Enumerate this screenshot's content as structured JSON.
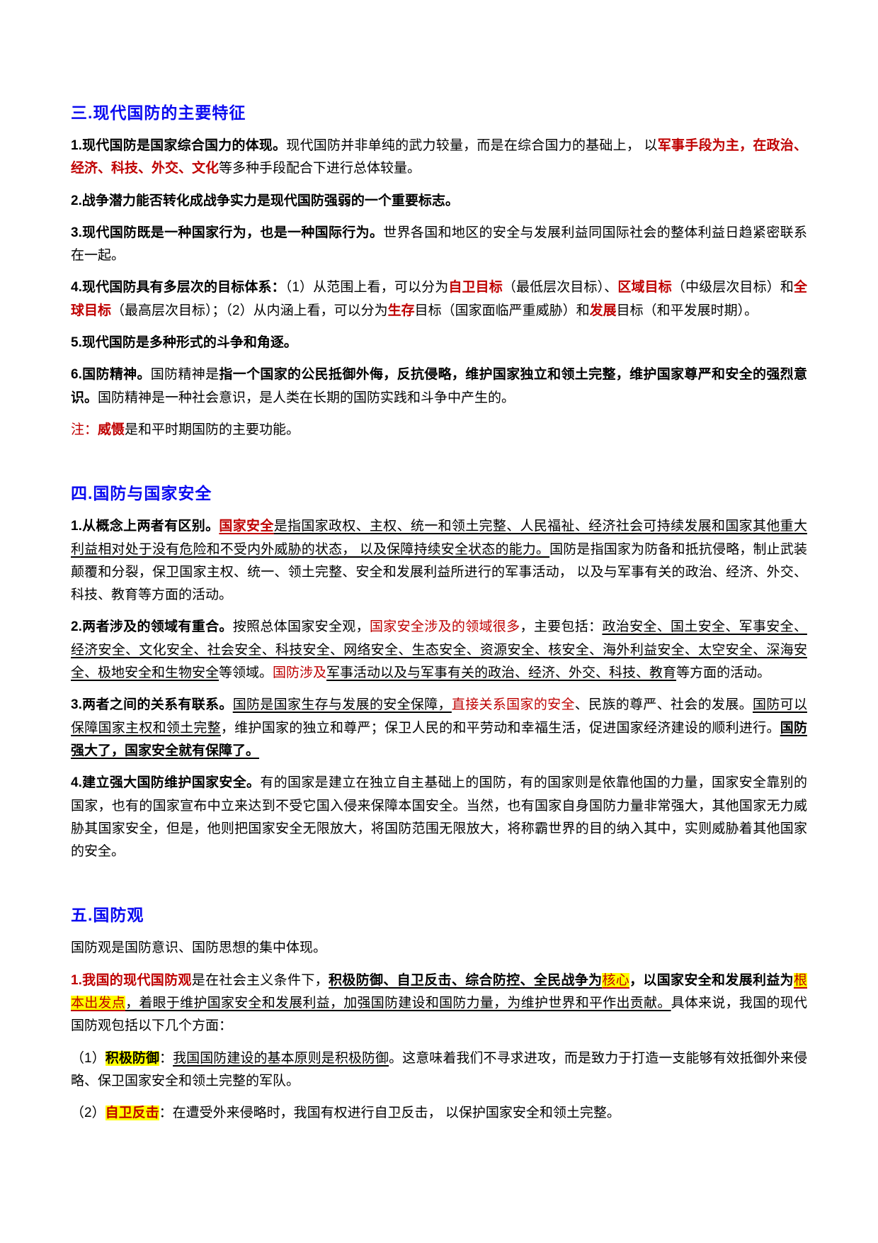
{
  "colors": {
    "heading_blue": "#0a0af0",
    "accent_red": "#bf0000",
    "highlight_yellow": "#ffff00",
    "body_black": "#000000",
    "page_background": "#ffffff"
  },
  "style_flags_legend": {
    "b": "bold",
    "r": "red-text",
    "u": "underline",
    "h": "yellow-highlight"
  },
  "document": {
    "sections": [
      {
        "id": "3",
        "heading": "三.现代国防的主要特征",
        "paragraphs": [
          {
            "runs": [
              {
                "t": "1.现代国防是国家综合国力的体现。",
                "s": [
                  "b"
                ]
              },
              {
                "t": "现代国防并非单纯的武力较量，而是在综合国力的基础上， 以",
                "s": []
              },
              {
                "t": "军事手段为主，在政治、经济、科技、外交、文化",
                "s": [
                  "b",
                  "r"
                ]
              },
              {
                "t": "等多种手段配合下进行总体较量。",
                "s": []
              }
            ]
          },
          {
            "runs": [
              {
                "t": "2.战争潜力能否转化成战争实力是现代国防强弱的一个重要标志。",
                "s": [
                  "b"
                ]
              }
            ]
          },
          {
            "runs": [
              {
                "t": "3.现代国防既是一种国家行为，也是一种国际行为。",
                "s": [
                  "b"
                ]
              },
              {
                "t": "世界各国和地区的安全与发展利益同国际社会的整体利益日趋紧密联系在一起。",
                "s": []
              }
            ]
          },
          {
            "runs": [
              {
                "t": "4.现代国防具有多层次的目标体系：",
                "s": [
                  "b"
                ]
              },
              {
                "t": "（1）从范围上看，可以分为",
                "s": []
              },
              {
                "t": "自卫目标",
                "s": [
                  "b",
                  "r"
                ]
              },
              {
                "t": "（最低层次目标）、",
                "s": []
              },
              {
                "t": "区域目标",
                "s": [
                  "b",
                  "r"
                ]
              },
              {
                "t": "（中级层次目标）和",
                "s": []
              },
              {
                "t": "全球目标",
                "s": [
                  "b",
                  "r"
                ]
              },
              {
                "t": "（最高层次目标）；（2）从内涵上看，可以分为",
                "s": []
              },
              {
                "t": "生存",
                "s": [
                  "b",
                  "r"
                ]
              },
              {
                "t": "目标（国家面临严重威胁）和",
                "s": []
              },
              {
                "t": "发展",
                "s": [
                  "b",
                  "r"
                ]
              },
              {
                "t": "目标（和平发展时期）。",
                "s": []
              }
            ]
          },
          {
            "runs": [
              {
                "t": "5.现代国防是多种形式的斗争和角逐。",
                "s": [
                  "b"
                ]
              }
            ]
          },
          {
            "runs": [
              {
                "t": "6.国防精神。",
                "s": [
                  "b"
                ]
              },
              {
                "t": "国防精神是",
                "s": []
              },
              {
                "t": "指一个国家的公民抵御外侮，反抗侵略，维护国家独立和领土完整，维护国家尊严和安全的强烈意识。",
                "s": [
                  "b"
                ]
              },
              {
                "t": "国防精神是一种社会意识，是人类在长期的国防实践和斗争中产生的。",
                "s": []
              }
            ]
          },
          {
            "runs": [
              {
                "t": "注：",
                "s": [
                  "r"
                ]
              },
              {
                "t": "威慑",
                "s": [
                  "b",
                  "r"
                ]
              },
              {
                "t": "是和平时期国防的主要功能。",
                "s": []
              }
            ]
          }
        ]
      },
      {
        "id": "4",
        "heading": "四.国防与国家安全",
        "paragraphs": [
          {
            "runs": [
              {
                "t": "1.从概念上两者有区别。",
                "s": [
                  "b"
                ]
              },
              {
                "t": "国家安全",
                "s": [
                  "b",
                  "r",
                  "u"
                ]
              },
              {
                "t": "是指国家政权、主权、统一和领土完整、人民福祉、经济社会可持续发展和国家其他重大利益相对处于没有危险和不受内外威胁的状态， 以及保障持续安全状态的能力。",
                "s": [
                  "u"
                ]
              },
              {
                "t": "国防是指国家为防备和抵抗侵略，制止武装颠覆和分裂，保卫国家主权、统一、领土完整、安全和发展利益所进行的军事活动， 以及与军事有关的政治、经济、外交、科技、教育等方面的活动。",
                "s": []
              }
            ]
          },
          {
            "runs": [
              {
                "t": "2.两者涉及的领域有重合。",
                "s": [
                  "b"
                ]
              },
              {
                "t": "按照总体国家安全观，",
                "s": []
              },
              {
                "t": "国家安全涉及的领域很多",
                "s": [
                  "r"
                ]
              },
              {
                "t": "，主要包括：",
                "s": []
              },
              {
                "t": "政治安全、国土安全、军事安全、经济安全、文化安全、社会安全、科技安全、网络安全、生态安全、资源安全、核安全、海外利益安全、太空安全、深海安全、极地安全和生物安全",
                "s": [
                  "u"
                ]
              },
              {
                "t": "等领域。",
                "s": []
              },
              {
                "t": "国防涉及",
                "s": [
                  "r"
                ]
              },
              {
                "t": "军事活动以及与军事有关的政治、经济、外交、科技、教育",
                "s": [
                  "u"
                ]
              },
              {
                "t": "等方面的活动。",
                "s": []
              }
            ]
          },
          {
            "runs": [
              {
                "t": "3.两者之间的关系有联系。",
                "s": [
                  "b"
                ]
              },
              {
                "t": "国防是国家生存与发展的安全保障，",
                "s": [
                  "u"
                ]
              },
              {
                "t": "直接关系国家的安全",
                "s": [
                  "r"
                ]
              },
              {
                "t": "、民族的尊严、社会的发展。",
                "s": []
              },
              {
                "t": "国防可以保障国家主权和领土完整",
                "s": [
                  "u"
                ]
              },
              {
                "t": "，维护国家的独立和尊严；保卫人民的和平劳动和幸福生活，促进国家经济建设的顺利进行。",
                "s": []
              },
              {
                "t": "国防强大了，国家安全就有保障了。",
                "s": [
                  "b",
                  "u"
                ]
              }
            ]
          },
          {
            "runs": [
              {
                "t": "4.建立强大国防维护国家安全。",
                "s": [
                  "b"
                ]
              },
              {
                "t": "有的国家是建立在独立自主基础上的国防，有的国家则是依靠他国的力量，国家安全靠别的国家，也有的国家宣布中立来达到不受它国入侵来保障本国安全。当然，也有国家自身国防力量非常强大，其他国家无力威胁其国家安全，但是，他则把国家安全无限放大，将国防范围无限放大，将称霸世界的目的纳入其中，实则威胁着其他国家的安全。",
                "s": []
              }
            ]
          }
        ]
      },
      {
        "id": "5",
        "heading": "五.国防观",
        "paragraphs": [
          {
            "runs": [
              {
                "t": "国防观是国防意识、国防思想的集中体现。",
                "s": []
              }
            ]
          },
          {
            "runs": [
              {
                "t": "1.我国的现代国防观",
                "s": [
                  "b",
                  "r"
                ]
              },
              {
                "t": "是在社会主义条件下，",
                "s": []
              },
              {
                "t": "积极防御、自卫反击、综合防控、全民战争为",
                "s": [
                  "b",
                  "u"
                ]
              },
              {
                "t": "核心",
                "s": [
                  "r",
                  "u",
                  "h"
                ]
              },
              {
                "t": "，以国家安全和发展利益为",
                "s": [
                  "b"
                ]
              },
              {
                "t": "根本出发点",
                "s": [
                  "r",
                  "u",
                  "h"
                ]
              },
              {
                "t": "，着眼于维护国家安全和发展利益，加强国防建设和国防力量，为维护世界和平作出贡献。",
                "s": [
                  "u"
                ]
              },
              {
                "t": "具体来说，我国的现代国防观包括以下几个方面：",
                "s": []
              }
            ]
          },
          {
            "runs": [
              {
                "t": "（1）",
                "s": []
              },
              {
                "t": "积极防御",
                "s": [
                  "b",
                  "h"
                ]
              },
              {
                "t": "：",
                "s": []
              },
              {
                "t": "我国国防建设的基本原则是积极防御",
                "s": [
                  "u"
                ]
              },
              {
                "t": "。这意味着我们不寻求进攻，而是致力于打造一支能够有效抵御外来侵略、保卫国家安全和领土完整的军队。",
                "s": []
              }
            ]
          },
          {
            "runs": [
              {
                "t": "（2）",
                "s": []
              },
              {
                "t": "自卫反击",
                "s": [
                  "b",
                  "r",
                  "h"
                ]
              },
              {
                "t": "：在遭受外来侵略时，我国有权进行自卫反击， 以保护国家安全和领土完整。",
                "s": []
              }
            ]
          }
        ]
      }
    ]
  }
}
